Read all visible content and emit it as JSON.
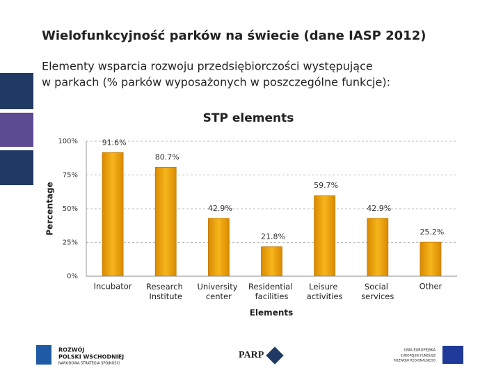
{
  "header": {
    "title": "Wielofunkcyjność parków na świecie (dane IASP 2012)",
    "subtitle_lines": [
      "Elementy wsparcia rozwoju przedsiębiorczości występujące",
      "w parkach (% parków wyposażonych w poszczególne funkcje):"
    ]
  },
  "chart_data": {
    "type": "bar",
    "title": "STP elements",
    "x_label": "Elements",
    "y_label": "Percentage",
    "categories": [
      "Incubator",
      "Research Institute",
      "University center",
      "Residential facilities",
      "Leisure activities",
      "Social services",
      "Other"
    ],
    "values": [
      91.6,
      80.7,
      42.9,
      21.8,
      59.7,
      42.9,
      25.2
    ],
    "value_labels": [
      "91.6%",
      "80.7%",
      "42.9%",
      "21.8%",
      "59.7%",
      "42.9%",
      "25.2%"
    ],
    "color": "#f2a900",
    "ylim": [
      0,
      100
    ],
    "yticks": [
      {
        "value": 0,
        "label": "0%"
      },
      {
        "value": 25,
        "label": "25%"
      },
      {
        "value": 50,
        "label": "50%"
      },
      {
        "value": 75,
        "label": "75%"
      },
      {
        "value": 100,
        "label": "100%"
      }
    ],
    "grid": true
  },
  "footer": {
    "logo_left": [
      "ROZWÓJ",
      "POLSKI WSCHODNIEJ",
      "NARODOWA STRATEGIA SPÓJNOŚCI"
    ],
    "logo_center": "PARP",
    "logo_right": [
      "UNIA EUROPEJSKA",
      "EUROPEJSKI FUNDUSZ",
      "ROZWOJU REGIONALNEGO"
    ]
  }
}
